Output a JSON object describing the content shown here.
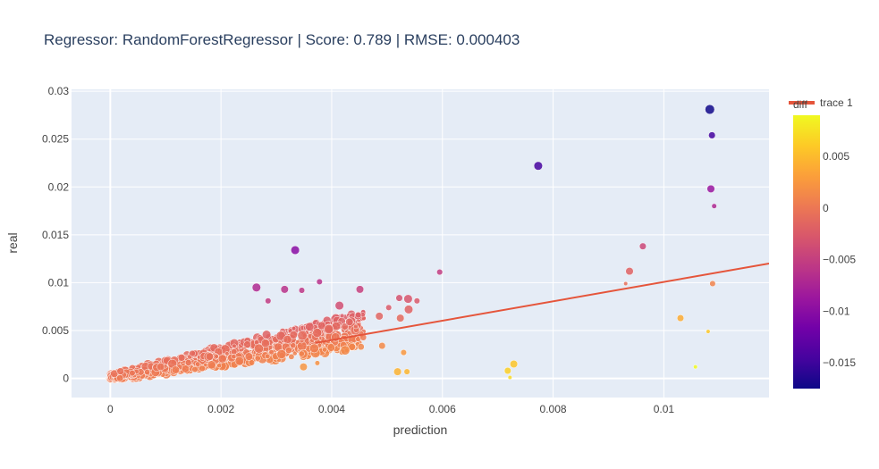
{
  "chart_data": {
    "type": "scatter",
    "title": "Regressor: RandomForestRegressor | Score: 0.789 | RMSE: 0.000403",
    "xlabel": "prediction",
    "ylabel": "real",
    "xlim": [
      -0.0007,
      0.0119
    ],
    "ylim": [
      -0.002,
      0.0302
    ],
    "x_ticks": [
      {
        "value": 0,
        "label": "0"
      },
      {
        "value": 0.002,
        "label": "0.002"
      },
      {
        "value": 0.004,
        "label": "0.004"
      },
      {
        "value": 0.006,
        "label": "0.006"
      },
      {
        "value": 0.008,
        "label": "0.008"
      },
      {
        "value": 0.01,
        "label": "0.01"
      }
    ],
    "y_ticks": [
      {
        "value": 0,
        "label": "0"
      },
      {
        "value": 0.005,
        "label": "0.005"
      },
      {
        "value": 0.01,
        "label": "0.01"
      },
      {
        "value": 0.015,
        "label": "0.015"
      },
      {
        "value": 0.02,
        "label": "0.02"
      },
      {
        "value": 0.025,
        "label": "0.025"
      },
      {
        "value": 0.03,
        "label": "0.03"
      }
    ],
    "grid": true,
    "colorbar": {
      "title": "diff",
      "range": [
        -0.0175,
        0.009
      ],
      "ticks": [
        {
          "value": 0.005,
          "label": "0.005"
        },
        {
          "value": 0,
          "label": "0"
        },
        {
          "value": -0.005,
          "label": "−0.005"
        },
        {
          "value": -0.01,
          "label": "−0.01"
        },
        {
          "value": -0.015,
          "label": "−0.015"
        }
      ]
    },
    "series": [
      {
        "kind": "points",
        "color_encoding": "diff",
        "size_encoding": true,
        "points": [
          {
            "x": 0.01083,
            "y": 0.0281,
            "s": 9,
            "c": -0.0173
          },
          {
            "x": 0.01087,
            "y": 0.0254,
            "s": 6,
            "c": -0.0146
          },
          {
            "x": 0.00773,
            "y": 0.0222,
            "s": 8,
            "c": -0.0145
          },
          {
            "x": 0.01085,
            "y": 0.0198,
            "s": 7,
            "c": -0.0089
          },
          {
            "x": 0.01091,
            "y": 0.018,
            "s": 4,
            "c": -0.0071
          },
          {
            "x": 0.00962,
            "y": 0.0138,
            "s": 6,
            "c": -0.0042
          },
          {
            "x": 0.00334,
            "y": 0.0134,
            "s": 8,
            "c": -0.01
          },
          {
            "x": 0.00938,
            "y": 0.0112,
            "s": 7,
            "c": -0.0018
          },
          {
            "x": 0.00595,
            "y": 0.0111,
            "s": 5,
            "c": -0.0052
          },
          {
            "x": 0.00931,
            "y": 0.0099,
            "s": 3,
            "c": -0.0006
          },
          {
            "x": 0.01088,
            "y": 0.0099,
            "s": 5,
            "c": 0.001
          },
          {
            "x": 0.00264,
            "y": 0.0095,
            "s": 8,
            "c": -0.0069
          },
          {
            "x": 0.00315,
            "y": 0.0093,
            "s": 7,
            "c": -0.0062
          },
          {
            "x": 0.00378,
            "y": 0.0101,
            "s": 5,
            "c": -0.0063
          },
          {
            "x": 0.00451,
            "y": 0.0093,
            "s": 7,
            "c": -0.0048
          },
          {
            "x": 0.00538,
            "y": 0.0083,
            "s": 8,
            "c": -0.0029
          },
          {
            "x": 0.00554,
            "y": 0.0081,
            "s": 5,
            "c": -0.0026
          },
          {
            "x": 0.00539,
            "y": 0.0072,
            "s": 8,
            "c": -0.0018
          },
          {
            "x": 0.00503,
            "y": 0.0074,
            "s": 5,
            "c": -0.0024
          },
          {
            "x": 0.00522,
            "y": 0.0084,
            "s": 6,
            "c": -0.0032
          },
          {
            "x": 0.00486,
            "y": 0.0065,
            "s": 7,
            "c": -0.0016
          },
          {
            "x": 0.00524,
            "y": 0.0063,
            "s": 7,
            "c": -0.0011
          },
          {
            "x": 0.00346,
            "y": 0.0092,
            "s": 5,
            "c": -0.0057
          },
          {
            "x": 0.00285,
            "y": 0.0081,
            "s": 5,
            "c": -0.0053
          },
          {
            "x": 0.00414,
            "y": 0.0076,
            "s": 8,
            "c": -0.0035
          },
          {
            "x": 0.00432,
            "y": 0.0059,
            "s": 7,
            "c": -0.0016
          },
          {
            "x": 0.00491,
            "y": 0.0034,
            "s": 6,
            "c": 0.0015
          },
          {
            "x": 0.0053,
            "y": 0.0027,
            "s": 5,
            "c": 0.0026
          },
          {
            "x": 0.00349,
            "y": 0.0012,
            "s": 7,
            "c": 0.0023
          },
          {
            "x": 0.00374,
            "y": 0.0016,
            "s": 4,
            "c": 0.0021
          },
          {
            "x": 0.00519,
            "y": 0.0007,
            "s": 7,
            "c": 0.0045
          },
          {
            "x": 0.00536,
            "y": 0.0007,
            "s": 5,
            "c": 0.0047
          },
          {
            "x": 0.00718,
            "y": 0.0008,
            "s": 6,
            "c": 0.0064
          },
          {
            "x": 0.00729,
            "y": 0.0015,
            "s": 7,
            "c": 0.0058
          },
          {
            "x": 0.00722,
            "y": 0.0001,
            "s": 3,
            "c": 0.0071
          },
          {
            "x": 0.0103,
            "y": 0.0063,
            "s": 6,
            "c": 0.004
          },
          {
            "x": 0.0108,
            "y": 0.0049,
            "s": 3,
            "c": 0.0059
          },
          {
            "x": 0.01057,
            "y": 0.0012,
            "s": 3,
            "c": 0.0091
          }
        ]
      },
      {
        "kind": "line",
        "name": "trace 1",
        "color": "#e5553b",
        "x": [
          0.0037,
          0.0119
        ],
        "y": [
          0.0037,
          0.012
        ]
      }
    ]
  }
}
